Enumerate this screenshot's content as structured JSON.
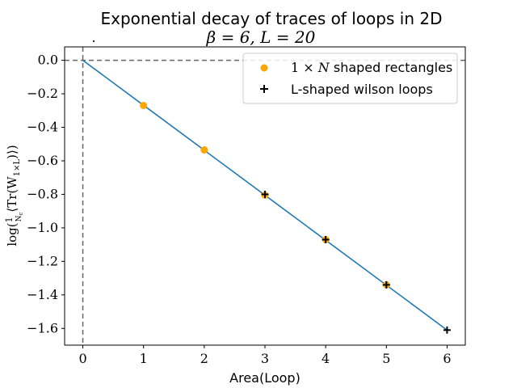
{
  "chart_data": {
    "type": "scatter",
    "title": "Exponential decay of traces of loops in 2D",
    "subtitle": "β = 6, L = 20",
    "xlabel": "Area(Loop)",
    "ylabel": "log(1/N_c ⟨Tr(W_{1×L})⟩)",
    "xlim": [
      -0.3,
      6.3
    ],
    "ylim": [
      -1.7,
      0.08
    ],
    "xticks": [
      0,
      1,
      2,
      3,
      4,
      5,
      6
    ],
    "yticks": [
      0.0,
      -0.2,
      -0.4,
      -0.6,
      -0.8,
      -1.0,
      -1.2,
      -1.4,
      -1.6
    ],
    "ytick_labels": [
      "0.0",
      "−0.2",
      "−0.4",
      "−0.6",
      "−0.8",
      "−1.0",
      "−1.2",
      "−1.4",
      "−1.6"
    ],
    "grid": false,
    "legend_position": "top-right",
    "fit_line": {
      "x": [
        0,
        6
      ],
      "y": [
        0,
        -1.61
      ],
      "color": "#1f77b4"
    },
    "reference_lines": {
      "horizontal_y": 0,
      "vertical_x": 0,
      "color": "#666666"
    },
    "series": [
      {
        "name": "1 × N shaped rectangles",
        "marker": "circle",
        "color": "#ffa500",
        "x": [
          1,
          2,
          3,
          4,
          5
        ],
        "y": [
          -0.27,
          -0.535,
          -0.805,
          -1.07,
          -1.34
        ]
      },
      {
        "name": "L-shaped wilson loops",
        "marker": "plus",
        "color": "#000000",
        "x": [
          3,
          4,
          5,
          6
        ],
        "y": [
          -0.8,
          -1.07,
          -1.34,
          -1.61
        ]
      }
    ]
  }
}
